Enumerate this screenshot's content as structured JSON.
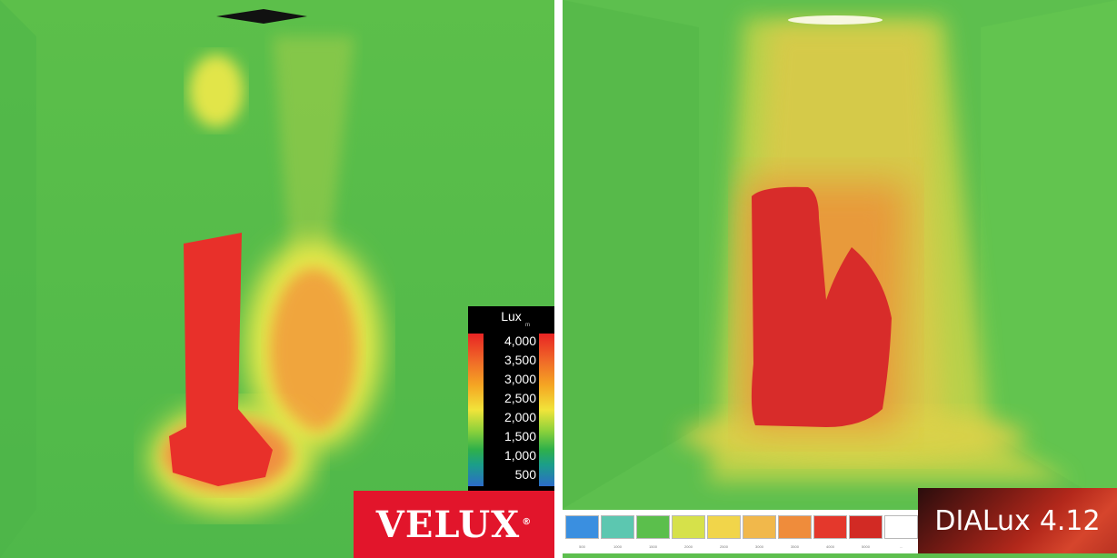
{
  "left_panel": {
    "legend": {
      "title": "Lux",
      "unit_mark": "m",
      "ticks": [
        "4,000",
        "3,500",
        "3,000",
        "2,500",
        "2,000",
        "1,500",
        "1,000",
        "500"
      ]
    },
    "logo": {
      "text": "VELUX",
      "mark": "®"
    }
  },
  "right_panel": {
    "legend": {
      "colors": [
        "#3a8fe0",
        "#5cc7b0",
        "#5bbf4c",
        "#d6e14a",
        "#f1d54a",
        "#f1b84b",
        "#ef8c3b",
        "#e4382c",
        "#d22a24",
        "#ffffff"
      ],
      "labels": [
        "500",
        "1000",
        "1500",
        "2000",
        "2500",
        "3000",
        "3500",
        "4000",
        "5000",
        "..."
      ]
    },
    "logo": {
      "text": "DIALux",
      "version": "4.12"
    }
  }
}
